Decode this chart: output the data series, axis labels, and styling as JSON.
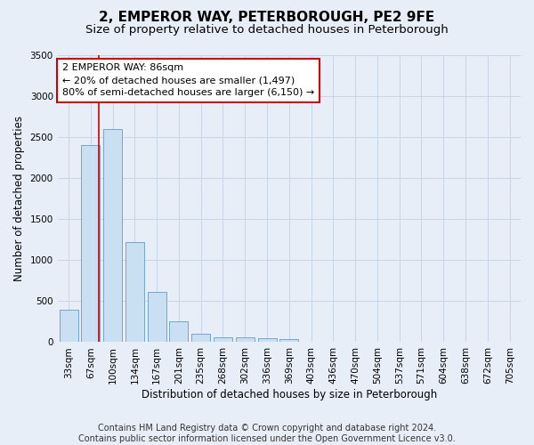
{
  "title": "2, EMPEROR WAY, PETERBOROUGH, PE2 9FE",
  "subtitle": "Size of property relative to detached houses in Peterborough",
  "xlabel": "Distribution of detached houses by size in Peterborough",
  "ylabel": "Number of detached properties",
  "categories": [
    "33sqm",
    "67sqm",
    "100sqm",
    "134sqm",
    "167sqm",
    "201sqm",
    "235sqm",
    "268sqm",
    "302sqm",
    "336sqm",
    "369sqm",
    "403sqm",
    "436sqm",
    "470sqm",
    "504sqm",
    "537sqm",
    "571sqm",
    "604sqm",
    "638sqm",
    "672sqm",
    "705sqm"
  ],
  "values": [
    390,
    2400,
    2600,
    1220,
    615,
    250,
    100,
    60,
    55,
    50,
    35,
    0,
    0,
    0,
    0,
    0,
    0,
    0,
    0,
    0,
    0
  ],
  "bar_color": "#c9dff2",
  "bar_edge_color": "#6699cc",
  "grid_color": "#c8d4e8",
  "background_color": "#e8eef8",
  "annotation_text": "2 EMPEROR WAY: 86sqm\n← 20% of detached houses are smaller (1,497)\n80% of semi-detached houses are larger (6,150) →",
  "annotation_box_color": "#ffffff",
  "annotation_box_edge": "#cc0000",
  "vline_x": 1.37,
  "vline_color": "#cc0000",
  "ylim": [
    0,
    3500
  ],
  "yticks": [
    0,
    500,
    1000,
    1500,
    2000,
    2500,
    3000,
    3500
  ],
  "footer": "Contains HM Land Registry data © Crown copyright and database right 2024.\nContains public sector information licensed under the Open Government Licence v3.0.",
  "title_fontsize": 11,
  "subtitle_fontsize": 9.5,
  "axis_label_fontsize": 8.5,
  "tick_fontsize": 7.5,
  "annotation_fontsize": 8,
  "footer_fontsize": 7
}
